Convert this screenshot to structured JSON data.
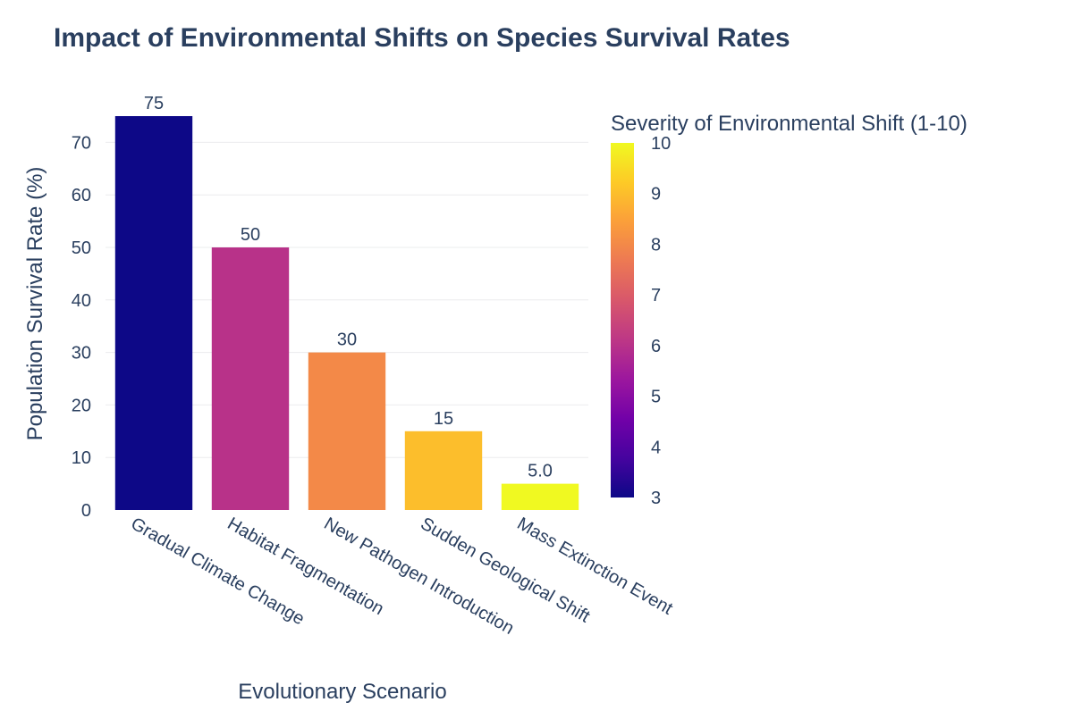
{
  "chart_data": {
    "type": "bar",
    "title": "Impact of Environmental Shifts on Species Survival Rates",
    "xlabel": "Evolutionary Scenario",
    "ylabel": "Population Survival Rate (%)",
    "categories": [
      "Gradual Climate Change",
      "Habitat Fragmentation",
      "New Pathogen Introduction",
      "Sudden Geological Shift",
      "Mass Extinction Event"
    ],
    "values": [
      75,
      50,
      30,
      15,
      5
    ],
    "value_labels": [
      "75",
      "50",
      "30",
      "15",
      "5.0"
    ],
    "severity": [
      3,
      6,
      8,
      9,
      10
    ],
    "ylim": [
      0,
      75
    ],
    "yticks": [
      0,
      10,
      20,
      30,
      40,
      50,
      60,
      70
    ],
    "grid": true,
    "colorbar": {
      "title": "Severity of Environmental Shift (1-10)",
      "range": [
        3,
        10
      ],
      "ticks": [
        3,
        4,
        5,
        6,
        7,
        8,
        9,
        10
      ],
      "colorscale": "plasma"
    },
    "colors": {
      "text": "#2a3f5f",
      "grid": "#ebecee"
    }
  }
}
